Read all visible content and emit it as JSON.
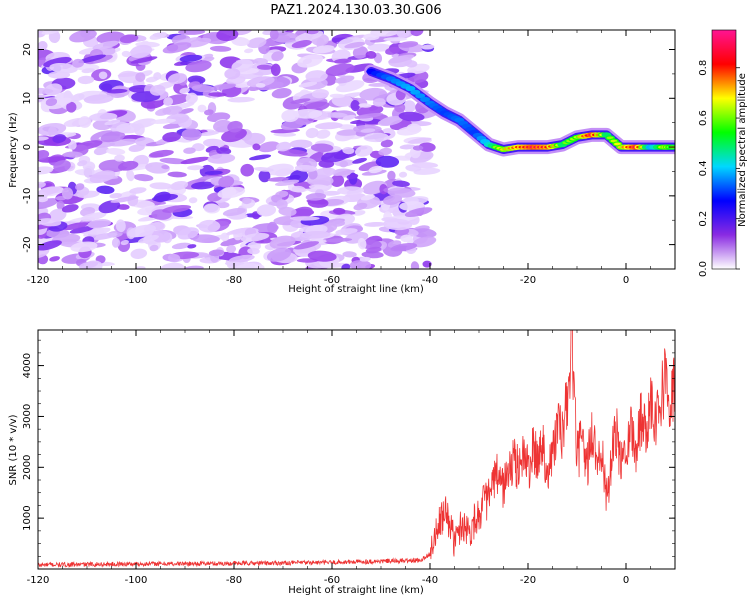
{
  "figure": {
    "title": "PAZ1.2024.130.03.30.G06"
  },
  "chart_data": [
    {
      "type": "heatmap",
      "xlabel": "Height of straight line (km)",
      "ylabel": "Frequency (Hz)",
      "xlim": [
        -120,
        10
      ],
      "ylim": [
        -25,
        24
      ],
      "x_ticks": [
        "-120",
        "-100",
        "-80",
        "-60",
        "-40",
        "-20",
        "0"
      ],
      "y_ticks": [
        "20",
        "10",
        "0",
        "-10",
        "-20"
      ],
      "noise_region_km": [
        -120,
        -40
      ],
      "ridge": {
        "x": [
          -52,
          -48,
          -44,
          -40,
          -37,
          -34,
          -31,
          -28,
          -25,
          -22,
          -19,
          -16,
          -13,
          -10,
          -7,
          -4,
          -1,
          2,
          5,
          8,
          10
        ],
        "y": [
          15.5,
          14,
          12,
          9,
          7,
          5.5,
          3,
          0.5,
          -0.5,
          0,
          0,
          0,
          0.5,
          2,
          2.5,
          2.5,
          0,
          0,
          0,
          0,
          0
        ],
        "amplitude": [
          0.35,
          0.45,
          0.5,
          0.45,
          0.4,
          0.45,
          0.4,
          0.55,
          0.7,
          0.8,
          0.9,
          0.85,
          0.6,
          0.65,
          0.9,
          0.6,
          0.7,
          0.9,
          0.5,
          0.7,
          0.6
        ]
      },
      "colorbar": {
        "label": "Normalized spectral amplitude",
        "range": [
          0,
          0.95
        ],
        "ticks": [
          "0.0",
          "0.2",
          "0.4",
          "0.6",
          "0.8"
        ],
        "colors": [
          "#ffffff",
          "#8a2be2",
          "#0000ff",
          "#00d8ff",
          "#00ff00",
          "#ffff00",
          "#ff0000",
          "#ff1493"
        ]
      }
    },
    {
      "type": "line",
      "xlabel": "Height of straight line (km)",
      "ylabel": "SNR (10 * v/v)",
      "xlim": [
        -120,
        10
      ],
      "ylim": [
        0,
        4700
      ],
      "x_ticks": [
        "-120",
        "-100",
        "-80",
        "-60",
        "-40",
        "-20",
        "0"
      ],
      "y_ticks": [
        "1000",
        "2000",
        "3000",
        "4000"
      ],
      "color": "#ee3333",
      "x": [
        -120,
        -100,
        -80,
        -60,
        -42,
        -40,
        -38,
        -37,
        -36,
        -35,
        -34,
        -33,
        -32,
        -31,
        -30,
        -29,
        -28,
        -27,
        -26,
        -25,
        -24,
        -23,
        -22,
        -21,
        -20,
        -19,
        -18,
        -17,
        -16,
        -15,
        -14,
        -13,
        -12,
        -11,
        -10,
        -9,
        -8,
        -7,
        -6,
        -5,
        -4,
        -3,
        -2,
        -1,
        0,
        1,
        2,
        3,
        4,
        5,
        6,
        7,
        8,
        9,
        10
      ],
      "y": [
        80,
        100,
        110,
        130,
        170,
        300,
        900,
        1100,
        950,
        500,
        800,
        900,
        700,
        950,
        1100,
        1300,
        1400,
        1700,
        1850,
        1600,
        1900,
        2100,
        2000,
        2300,
        1950,
        2300,
        2150,
        2500,
        1900,
        2250,
        2850,
        2600,
        3300,
        4400,
        2200,
        2500,
        2000,
        2650,
        2200,
        2500,
        1300,
        2100,
        2700,
        2000,
        2500,
        2800,
        2300,
        3000,
        2700,
        3400,
        3000,
        3300,
        3800,
        3200,
        3700
      ]
    }
  ]
}
